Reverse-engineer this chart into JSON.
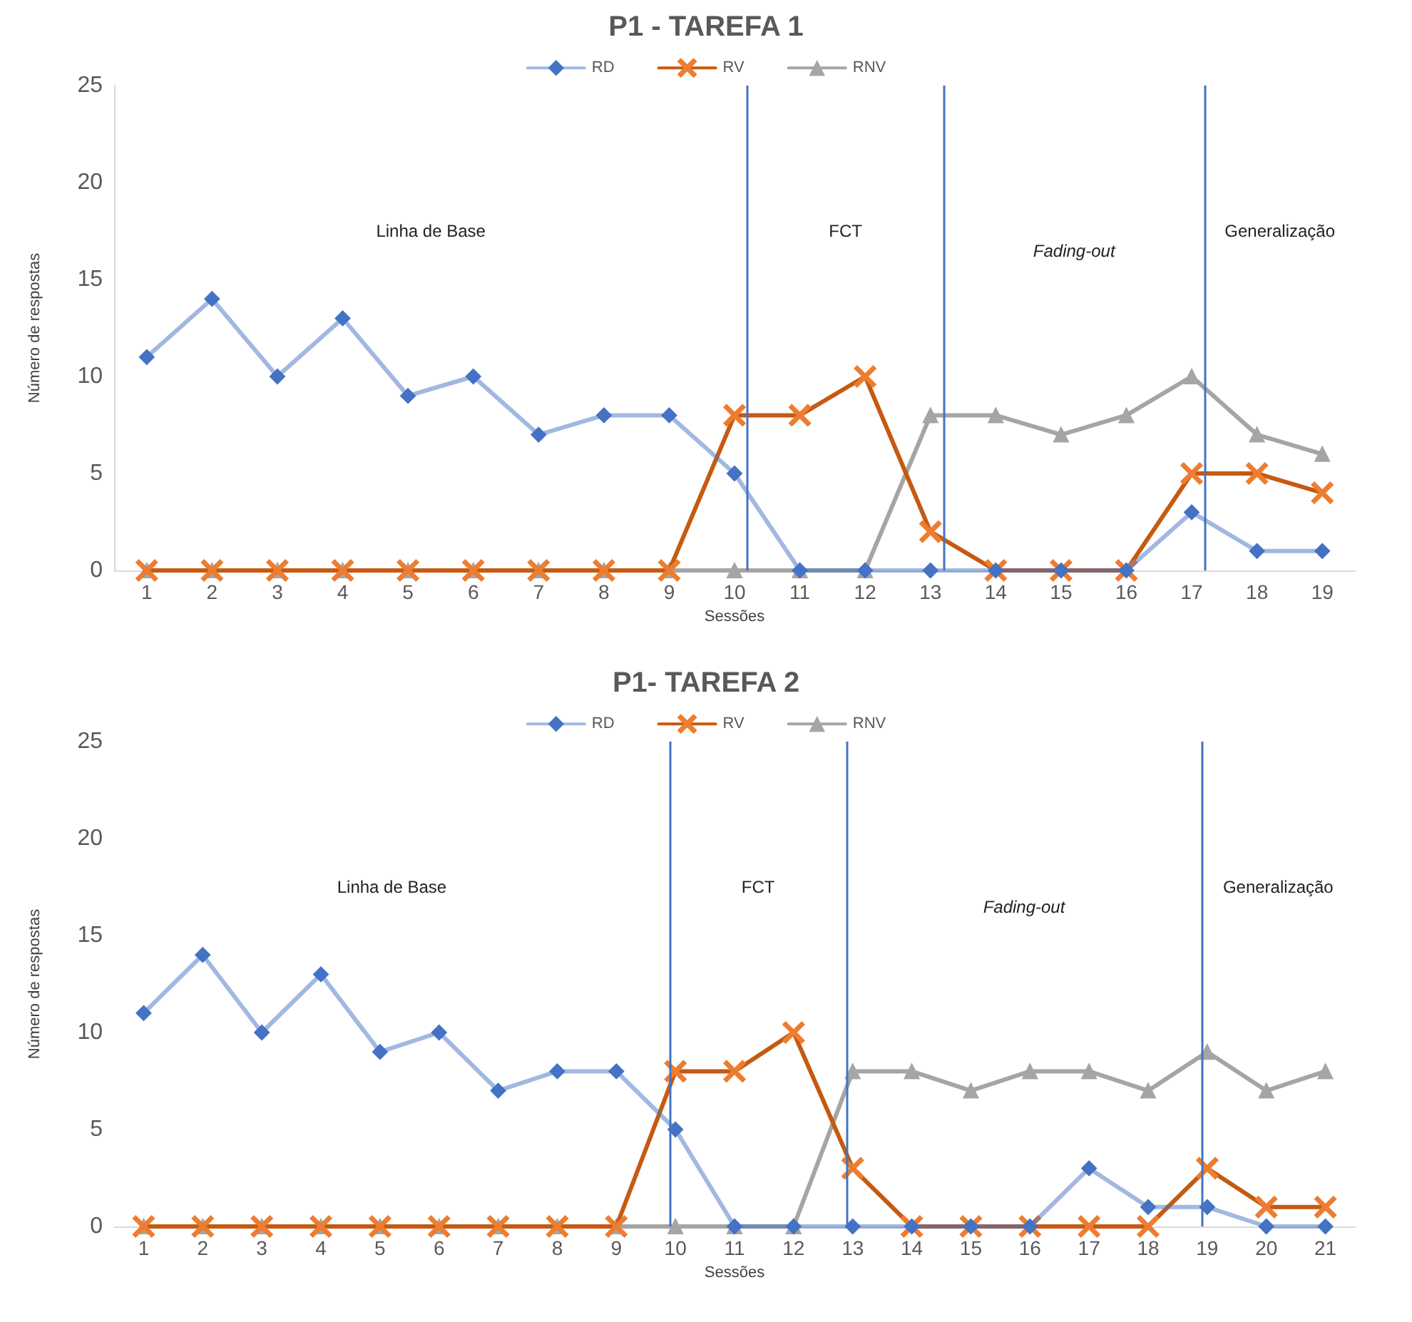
{
  "chart_data": [
    {
      "type": "line",
      "title": "P1 - TAREFA 1",
      "xlabel": "Sessões",
      "ylabel": "Número de respostas",
      "x": [
        1,
        2,
        3,
        4,
        5,
        6,
        7,
        8,
        9,
        10,
        11,
        12,
        13,
        14,
        15,
        16,
        17,
        18,
        19
      ],
      "xlim": [
        0.5,
        19.5
      ],
      "xticks": [
        1,
        2,
        3,
        4,
        5,
        6,
        7,
        8,
        9,
        10,
        11,
        12,
        13,
        14,
        15,
        16,
        17,
        18,
        19
      ],
      "ylim": [
        0,
        25
      ],
      "yticks": [
        0,
        5,
        10,
        15,
        20,
        25
      ],
      "grid": false,
      "legend": "top",
      "series": [
        {
          "name": "RD",
          "color": "#4472c4",
          "marker": "diamond",
          "values": [
            11,
            14,
            10,
            13,
            9,
            10,
            7,
            8,
            8,
            5,
            0,
            0,
            0,
            0,
            0,
            0,
            3,
            1,
            1
          ]
        },
        {
          "name": "RV",
          "color": "#c55a11",
          "marker": "cross",
          "values": [
            0,
            0,
            0,
            0,
            0,
            0,
            0,
            0,
            0,
            8,
            8,
            10,
            2,
            0,
            0,
            0,
            5,
            5,
            4
          ]
        },
        {
          "name": "RNV",
          "color": "#a5a5a5",
          "marker": "triangle",
          "values": [
            0,
            0,
            0,
            0,
            0,
            0,
            0,
            0,
            0,
            0,
            0,
            0,
            8,
            8,
            7,
            8,
            10,
            7,
            6
          ]
        }
      ],
      "ref_lines": [
        {
          "axis": "x",
          "value": 10.2,
          "color": "#4472c4"
        },
        {
          "axis": "x",
          "value": 13.2,
          "color": "#4472c4"
        },
        {
          "axis": "x",
          "value": 17.2,
          "color": "#4472c4"
        }
      ],
      "annotations": [
        "Linha de Base",
        "FCT",
        "Fading-out",
        "Generalização"
      ]
    },
    {
      "type": "line",
      "title": "P1- TAREFA 2",
      "xlabel": "Sessões",
      "ylabel": "Número de respostas",
      "x": [
        1,
        2,
        3,
        4,
        5,
        6,
        7,
        8,
        9,
        10,
        11,
        12,
        13,
        14,
        15,
        16,
        17,
        18,
        19,
        20,
        21
      ],
      "xlim": [
        0.5,
        21.5
      ],
      "xticks": [
        1,
        2,
        3,
        4,
        5,
        6,
        7,
        8,
        9,
        10,
        11,
        12,
        13,
        14,
        15,
        16,
        17,
        18,
        19,
        20,
        21
      ],
      "ylim": [
        0,
        25
      ],
      "yticks": [
        0,
        5,
        10,
        15,
        20,
        25
      ],
      "grid": false,
      "legend": "top",
      "series": [
        {
          "name": "RD",
          "color": "#4472c4",
          "marker": "diamond",
          "values": [
            11,
            14,
            10,
            13,
            9,
            10,
            7,
            8,
            8,
            5,
            0,
            0,
            0,
            0,
            0,
            0,
            3,
            1,
            1,
            0,
            0
          ]
        },
        {
          "name": "RV",
          "color": "#c55a11",
          "marker": "cross",
          "values": [
            0,
            0,
            0,
            0,
            0,
            0,
            0,
            0,
            0,
            8,
            8,
            10,
            3,
            0,
            0,
            0,
            0,
            0,
            3,
            1,
            1
          ]
        },
        {
          "name": "RNV",
          "color": "#a5a5a5",
          "marker": "triangle",
          "values": [
            0,
            0,
            0,
            0,
            0,
            0,
            0,
            0,
            0,
            0,
            0,
            0,
            8,
            8,
            7,
            8,
            8,
            7,
            9,
            7,
            8
          ]
        }
      ],
      "ref_lines": [
        {
          "axis": "x",
          "value": 9.9,
          "color": "#4472c4"
        },
        {
          "axis": "x",
          "value": 12.9,
          "color": "#4472c4"
        },
        {
          "axis": "x",
          "value": 18.9,
          "color": "#4472c4"
        }
      ],
      "annotations": [
        "Linha de Base",
        "FCT",
        "Fading-out",
        "Generalização"
      ]
    }
  ]
}
